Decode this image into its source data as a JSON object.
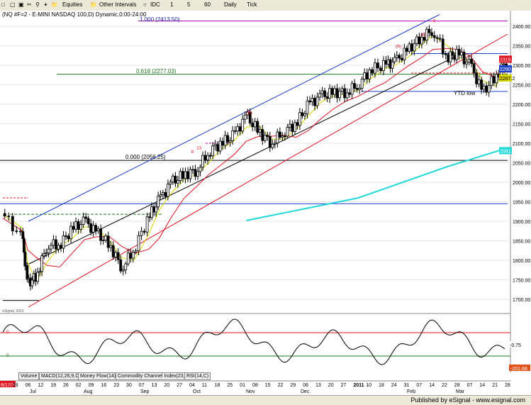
{
  "toolbar": {
    "equities_label": "Equities",
    "intervals_label": "Other Intervals",
    "interval_buttons": [
      "IDC",
      "1",
      "5",
      "60",
      "Daily",
      "Tick"
    ]
  },
  "chart": {
    "title": "(NQ #F=2 - E-MINI NASDAQ 100,D) Dynamic,0:00-24:00",
    "watermark": "eSignal, 2010",
    "price_labels": [
      "2400.00",
      "2350.00",
      "2300.00",
      "2250.00",
      "2200.00",
      "2150.00",
      "2100.00",
      "2050.00",
      "2000.00",
      "1950.00",
      "1900.00",
      "1850.00",
      "1800.00",
      "1750.00",
      "1700.00"
    ],
    "last_price_badges": [
      {
        "text": "2315.54",
        "color": "#e0101e"
      },
      {
        "text": "2290.7",
        "color": "#1c3fc8"
      },
      {
        "text": "2267.2",
        "color": "#d8d800"
      },
      {
        "text": "2081.1",
        "color": "#20d8d8"
      }
    ],
    "fib_top": "1.000 (2413.50)",
    "fib_mid": "0.618 (2277.03)",
    "fib_bottom": "0.000 (2056.25)",
    "ytd_low": "YTD low",
    "tl_labels": [
      "8",
      "13",
      "(R)",
      "(R)",
      "(R)",
      "4"
    ],
    "date_labels": [
      "6/17/10",
      "28",
      "06",
      "12",
      "19",
      "26",
      "02",
      "09",
      "16",
      "23",
      "30",
      "07",
      "13",
      "20",
      "27",
      "04",
      "11",
      "18",
      "25",
      "01",
      "08",
      "15",
      "22",
      "29",
      "06",
      "13",
      "20",
      "27",
      "2011",
      "10",
      "18",
      "24",
      "31",
      "07",
      "14",
      "22",
      "28",
      "07",
      "14",
      "21",
      "28"
    ],
    "month_labels": [
      "Jul",
      "Aug",
      "Sep",
      "Oct",
      "Nov",
      "Dec",
      "Feb",
      "Mar"
    ]
  },
  "indicator": {
    "value_badge": "-0.75",
    "value_badge2": "-201.68",
    "labels": [
      "0",
      "0"
    ],
    "tabs": [
      "Volume",
      "MACD(12,26,9,C)",
      "Money Flow(14)",
      "Commodity Channel Index(23,C)",
      "RSI(14,C)"
    ]
  },
  "footer": {
    "published": "Published by eSignal - www.esignal.com"
  },
  "chart_data": {
    "type": "candlestick",
    "title": "(NQ #F=2 - E-MINI NASDAQ 100,D) Dynamic,0:00-24:00",
    "ylim": [
      1680,
      2420
    ],
    "x_start": "2010-06-17",
    "x_end": "2011-03-28",
    "closes_approx": [
      [
        "2010-06-17",
        1920
      ],
      [
        "2010-06-28",
        1855
      ],
      [
        "2010-07-01",
        1740
      ],
      [
        "2010-07-06",
        1760
      ],
      [
        "2010-07-12",
        1840
      ],
      [
        "2010-07-19",
        1840
      ],
      [
        "2010-07-26",
        1880
      ],
      [
        "2010-08-02",
        1900
      ],
      [
        "2010-08-09",
        1870
      ],
      [
        "2010-08-16",
        1840
      ],
      [
        "2010-08-23",
        1780
      ],
      [
        "2010-08-30",
        1830
      ],
      [
        "2010-09-07",
        1910
      ],
      [
        "2010-09-13",
        1955
      ],
      [
        "2010-09-20",
        2000
      ],
      [
        "2010-09-27",
        2020
      ],
      [
        "2010-10-04",
        2030
      ],
      [
        "2010-10-11",
        2080
      ],
      [
        "2010-10-18",
        2100
      ],
      [
        "2010-10-25",
        2120
      ],
      [
        "2010-11-01",
        2170
      ],
      [
        "2010-11-08",
        2130
      ],
      [
        "2010-11-15",
        2100
      ],
      [
        "2010-11-22",
        2130
      ],
      [
        "2010-11-29",
        2150
      ],
      [
        "2010-12-06",
        2200
      ],
      [
        "2010-12-13",
        2220
      ],
      [
        "2010-12-20",
        2230
      ],
      [
        "2010-12-27",
        2230
      ],
      [
        "2011-01-03",
        2250
      ],
      [
        "2011-01-10",
        2290
      ],
      [
        "2011-01-18",
        2300
      ],
      [
        "2011-01-24",
        2310
      ],
      [
        "2011-01-31",
        2340
      ],
      [
        "2011-02-07",
        2370
      ],
      [
        "2011-02-14",
        2390
      ],
      [
        "2011-02-22",
        2320
      ],
      [
        "2011-02-28",
        2330
      ],
      [
        "2011-03-07",
        2300
      ],
      [
        "2011-03-14",
        2230
      ],
      [
        "2011-03-21",
        2270
      ],
      [
        "2011-03-28",
        2315
      ]
    ],
    "fib_levels": [
      {
        "label": "1.000 (2413.50)",
        "value": 2413.5
      },
      {
        "label": "0.618 (2277.03)",
        "value": 2277.03
      },
      {
        "label": "0.000 (2056.25)",
        "value": 2056.25
      }
    ],
    "horizontal_lines": [
      1945,
      1918,
      2233
    ],
    "last_values": {
      "ma_red": 2315.54,
      "ma_blue": 2290.7,
      "ma_yellow": 2267.2,
      "ma_cyan": 2081.1
    },
    "indicator": {
      "last": -0.75,
      "cci_last": -201.68
    }
  }
}
